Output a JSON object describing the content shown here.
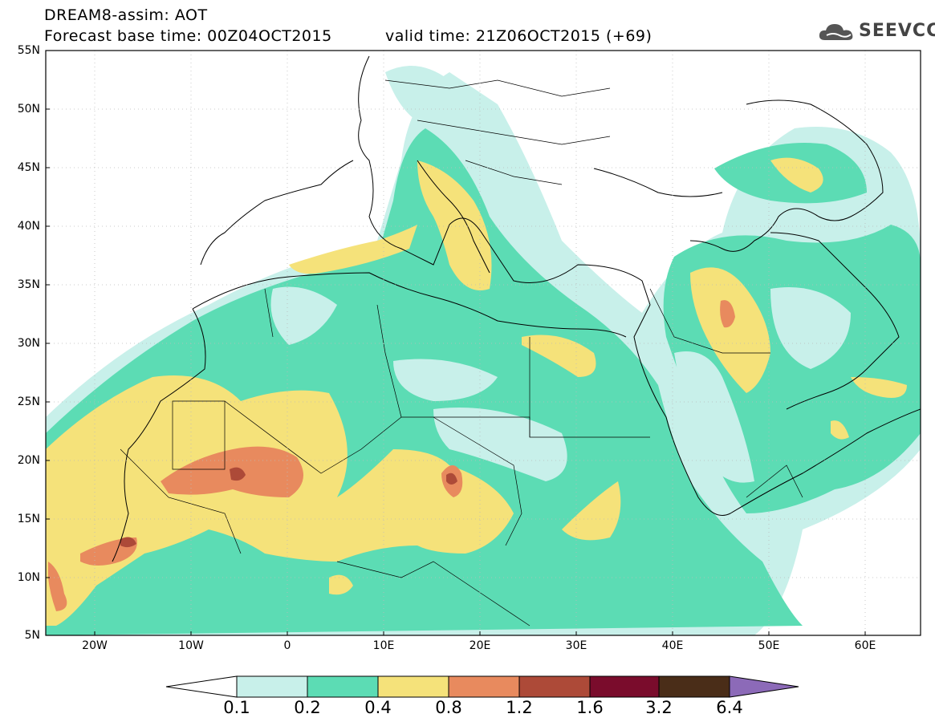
{
  "header": {
    "line1": "DREAM8-assim: AOT",
    "line2_base": "Forecast base time: 00Z04OCT2015",
    "line2_valid": "valid time: 21Z06OCT2015 (+69)"
  },
  "logo": {
    "text": "SEEVCCC",
    "icon": "cloud-icon"
  },
  "axes": {
    "lat_labels": [
      "55N",
      "50N",
      "45N",
      "40N",
      "35N",
      "30N",
      "25N",
      "20N",
      "15N",
      "10N",
      "5N"
    ],
    "lon_labels": [
      "20W",
      "10W",
      "0",
      "10E",
      "20E",
      "30E",
      "40E",
      "50E",
      "60E"
    ]
  },
  "colorbar": {
    "labels": [
      "0.1",
      "0.2",
      "0.4",
      "0.8",
      "1.2",
      "1.6",
      "3.2",
      "6.4"
    ],
    "colors": [
      "#ffffff",
      "#c8f0ea",
      "#5cdcb4",
      "#f5e27a",
      "#e88a5e",
      "#ad4a38",
      "#7a0c2c",
      "#4a2d18",
      "#8c6ab8"
    ]
  },
  "legend_colors": {
    "ocean": "#ffffff",
    "land": "#ffffff",
    "level_01": "#c8f0ea",
    "level_02": "#5cdcb4",
    "level_04": "#f5e27a",
    "level_08": "#e88a5e",
    "level_12": "#ad4a38",
    "level_16": "#7a0c2c"
  }
}
